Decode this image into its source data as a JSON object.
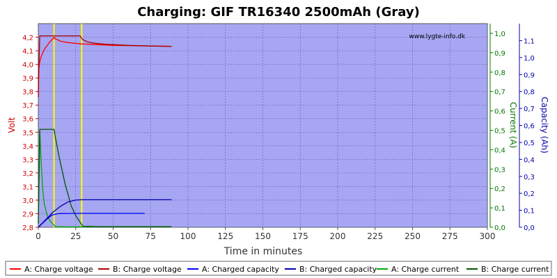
{
  "chart_data": {
    "type": "line",
    "title": "Charging: GIF TR16340 2500mAh (Gray)",
    "watermark": "www.lygte-info.dk",
    "xlabel": "Time in minutes",
    "xlim": [
      0,
      300
    ],
    "xticks": [
      0,
      25,
      50,
      75,
      100,
      125,
      150,
      175,
      200,
      225,
      250,
      275,
      300
    ],
    "y_left": {
      "label": "Volt",
      "color": "#cc0000",
      "lim": [
        2.8,
        4.3
      ],
      "ticks": [
        2.8,
        2.9,
        3.0,
        3.1,
        3.2,
        3.3,
        3.4,
        3.5,
        3.6,
        3.7,
        3.8,
        3.9,
        4.0,
        4.1,
        4.2
      ],
      "tick_labels": [
        "2,8",
        "2,9",
        "3,0",
        "3,1",
        "3,2",
        "3,3",
        "3,4",
        "3,5",
        "3,6",
        "3,7",
        "3,8",
        "3,9",
        "4,0",
        "4,1",
        "4,2"
      ]
    },
    "y_mid": {
      "label": "Current (A)",
      "color": "#007700",
      "lim": [
        0,
        1.05
      ],
      "ticks": [
        0,
        0.1,
        0.2,
        0.3,
        0.4,
        0.5,
        0.6,
        0.7,
        0.8,
        0.9,
        1.0
      ],
      "tick_labels": [
        "0,0",
        "0,1",
        "0,2",
        "0,3",
        "0,4",
        "0,5",
        "0,6",
        "0,7",
        "0,8",
        "0,9",
        "1,0"
      ]
    },
    "y_right": {
      "label": "Capacity (Ah)",
      "color": "#0000aa",
      "lim": [
        0,
        1.2
      ],
      "ticks": [
        0,
        0.1,
        0.2,
        0.3,
        0.4,
        0.5,
        0.6,
        0.7,
        0.8,
        0.9,
        1.0,
        1.1
      ],
      "tick_labels": [
        "0,0",
        "0,1",
        "0,2",
        "0,3",
        "0,4",
        "0,5",
        "0,6",
        "0,7",
        "0,8",
        "0,9",
        "1,0",
        "1,1"
      ]
    },
    "vlines": [
      10.5,
      29
    ],
    "grid": true,
    "legend_position": "bottom",
    "series": [
      {
        "name": "A: Charge voltage",
        "axis": "left",
        "color": "#ff0000",
        "x": [
          0,
          0.3,
          1,
          2,
          4,
          6,
          8,
          10,
          10.5,
          11,
          13,
          15,
          20,
          25,
          29,
          30,
          35,
          40,
          50,
          60,
          70,
          80,
          89
        ],
        "y": [
          3.81,
          3.96,
          4.02,
          4.06,
          4.11,
          4.14,
          4.17,
          4.19,
          4.2,
          4.19,
          4.18,
          4.17,
          4.16,
          4.155,
          4.15,
          4.15,
          4.148,
          4.145,
          4.14,
          4.138,
          4.136,
          4.134,
          4.133
        ]
      },
      {
        "name": "B: Charge voltage",
        "axis": "left",
        "color": "#aa0000",
        "x": [
          0,
          0.4,
          1,
          10,
          28,
          29,
          30,
          33,
          38,
          45,
          60,
          75,
          89
        ],
        "y": [
          3.76,
          4.0,
          4.21,
          4.21,
          4.21,
          4.19,
          4.18,
          4.165,
          4.155,
          4.148,
          4.14,
          4.135,
          4.132
        ]
      },
      {
        "name": "A: Charged capacity",
        "axis": "right",
        "color": "#0000ff",
        "x": [
          0,
          3,
          6,
          9,
          10.5,
          13,
          16,
          20,
          30,
          40,
          50,
          60,
          71
        ],
        "y": [
          0,
          0.025,
          0.05,
          0.07,
          0.075,
          0.08,
          0.081,
          0.0815,
          0.082,
          0.082,
          0.082,
          0.082,
          0.082
        ]
      },
      {
        "name": "B: Charged capacity",
        "axis": "right",
        "color": "#0000aa",
        "x": [
          0,
          5,
          10,
          15,
          20,
          25,
          29,
          35,
          50,
          70,
          89
        ],
        "y": [
          0,
          0.045,
          0.09,
          0.125,
          0.15,
          0.16,
          0.162,
          0.162,
          0.162,
          0.162,
          0.162
        ]
      },
      {
        "name": "A: Charge current",
        "axis": "mid",
        "color": "#00aa00",
        "x": [
          0,
          1,
          2,
          3,
          4,
          6,
          8,
          10.5,
          12,
          20,
          40,
          60,
          89
        ],
        "y": [
          0.02,
          0.5,
          0.32,
          0.19,
          0.12,
          0.06,
          0.03,
          0.01,
          0.003,
          0.002,
          0.002,
          0.002,
          0.002
        ]
      },
      {
        "name": "B: Charge current",
        "axis": "mid",
        "color": "#005500",
        "x": [
          0,
          1,
          8,
          10.5,
          11,
          14,
          18,
          22,
          25,
          28,
          29,
          30,
          40,
          60,
          89
        ],
        "y": [
          0.02,
          0.505,
          0.505,
          0.505,
          0.48,
          0.36,
          0.22,
          0.11,
          0.06,
          0.025,
          0.015,
          0.005,
          0.003,
          0.003,
          0.003
        ]
      }
    ]
  }
}
